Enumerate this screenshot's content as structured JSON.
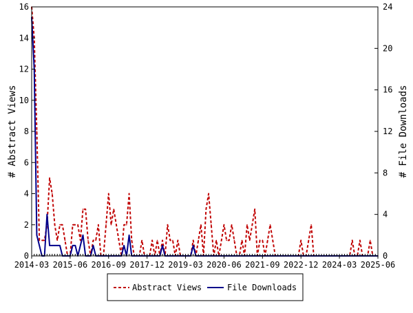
{
  "chart_data": {
    "type": "line",
    "title": "",
    "xlabel": "",
    "ylabel": "# Abstract Views",
    "y2label": "# File Downloads",
    "ylim": [
      0,
      16
    ],
    "y2lim": [
      0,
      24
    ],
    "yticks": [
      0,
      2,
      4,
      6,
      8,
      10,
      12,
      14,
      16
    ],
    "y2ticks": [
      0,
      4,
      8,
      12,
      16,
      20,
      24
    ],
    "x_range": [
      "2014-03",
      "2025-06"
    ],
    "x_tick_labels": [
      "2014-03",
      "2015-06",
      "2016-09",
      "2017-12",
      "2019-03",
      "2020-06",
      "2021-09",
      "2022-12",
      "2024-03",
      "2025-06"
    ],
    "grid": false,
    "legend_position": "bottom-center",
    "series": [
      {
        "name": "Abstract Views",
        "axis": "left",
        "color": "#c00000",
        "style": "dashed",
        "points": [
          [
            "2014-03",
            16
          ],
          [
            "2014-04",
            14
          ],
          [
            "2014-05",
            8
          ],
          [
            "2014-06",
            1
          ],
          [
            "2014-07",
            1
          ],
          [
            "2014-08",
            1
          ],
          [
            "2014-09",
            2
          ],
          [
            "2014-10",
            5
          ],
          [
            "2014-11",
            4
          ],
          [
            "2014-12",
            2
          ],
          [
            "2015-01",
            1
          ],
          [
            "2015-02",
            2
          ],
          [
            "2015-03",
            2
          ],
          [
            "2015-04",
            1
          ],
          [
            "2015-05",
            0
          ],
          [
            "2015-06",
            0
          ],
          [
            "2015-07",
            2
          ],
          [
            "2015-08",
            2
          ],
          [
            "2015-09",
            2
          ],
          [
            "2015-10",
            1
          ],
          [
            "2015-11",
            3
          ],
          [
            "2015-12",
            3
          ],
          [
            "2016-01",
            1
          ],
          [
            "2016-02",
            0
          ],
          [
            "2016-03",
            1
          ],
          [
            "2016-04",
            1
          ],
          [
            "2016-05",
            2
          ],
          [
            "2016-06",
            0
          ],
          [
            "2016-07",
            0
          ],
          [
            "2016-08",
            2
          ],
          [
            "2016-09",
            4
          ],
          [
            "2016-10",
            2
          ],
          [
            "2016-11",
            3
          ],
          [
            "2016-12",
            2
          ],
          [
            "2017-01",
            1
          ],
          [
            "2017-02",
            0
          ],
          [
            "2017-03",
            2
          ],
          [
            "2017-04",
            2
          ],
          [
            "2017-05",
            4
          ],
          [
            "2017-06",
            1
          ],
          [
            "2017-07",
            0
          ],
          [
            "2017-08",
            0
          ],
          [
            "2017-09",
            0
          ],
          [
            "2017-10",
            1
          ],
          [
            "2017-11",
            0
          ],
          [
            "2017-12",
            0
          ],
          [
            "2018-01",
            0
          ],
          [
            "2018-02",
            1
          ],
          [
            "2018-03",
            0
          ],
          [
            "2018-04",
            1
          ],
          [
            "2018-05",
            0
          ],
          [
            "2018-06",
            1
          ],
          [
            "2018-07",
            0
          ],
          [
            "2018-08",
            2
          ],
          [
            "2018-09",
            1
          ],
          [
            "2018-10",
            1
          ],
          [
            "2018-11",
            0
          ],
          [
            "2018-12",
            1
          ],
          [
            "2019-01",
            0
          ],
          [
            "2019-02",
            0
          ],
          [
            "2019-03",
            0
          ],
          [
            "2019-04",
            0
          ],
          [
            "2019-05",
            0
          ],
          [
            "2019-06",
            1
          ],
          [
            "2019-07",
            0
          ],
          [
            "2019-08",
            1
          ],
          [
            "2019-09",
            2
          ],
          [
            "2019-10",
            0
          ],
          [
            "2019-11",
            3
          ],
          [
            "2019-12",
            4
          ],
          [
            "2020-01",
            2
          ],
          [
            "2020-02",
            0
          ],
          [
            "2020-03",
            1
          ],
          [
            "2020-04",
            0
          ],
          [
            "2020-05",
            1
          ],
          [
            "2020-06",
            2
          ],
          [
            "2020-07",
            1
          ],
          [
            "2020-08",
            1
          ],
          [
            "2020-09",
            2
          ],
          [
            "2020-10",
            1
          ],
          [
            "2020-11",
            0
          ],
          [
            "2020-12",
            0
          ],
          [
            "2021-01",
            1
          ],
          [
            "2021-02",
            0
          ],
          [
            "2021-03",
            2
          ],
          [
            "2021-04",
            1
          ],
          [
            "2021-05",
            2
          ],
          [
            "2021-06",
            3
          ],
          [
            "2021-07",
            0
          ],
          [
            "2021-08",
            1
          ],
          [
            "2021-09",
            1
          ],
          [
            "2021-10",
            0
          ],
          [
            "2021-11",
            1
          ],
          [
            "2021-12",
            2
          ],
          [
            "2022-01",
            1
          ],
          [
            "2022-02",
            0
          ],
          [
            "2022-03",
            0
          ],
          [
            "2022-04",
            0
          ],
          [
            "2022-05",
            0
          ],
          [
            "2022-06",
            0
          ],
          [
            "2022-07",
            0
          ],
          [
            "2022-08",
            0
          ],
          [
            "2022-09",
            0
          ],
          [
            "2022-10",
            0
          ],
          [
            "2022-11",
            0
          ],
          [
            "2022-12",
            1
          ],
          [
            "2023-01",
            0
          ],
          [
            "2023-02",
            0
          ],
          [
            "2023-03",
            1
          ],
          [
            "2023-04",
            2
          ],
          [
            "2023-05",
            0
          ],
          [
            "2023-06",
            0
          ],
          [
            "2023-07",
            0
          ],
          [
            "2023-08",
            0
          ],
          [
            "2023-09",
            0
          ],
          [
            "2023-10",
            0
          ],
          [
            "2023-11",
            0
          ],
          [
            "2023-12",
            0
          ],
          [
            "2024-01",
            0
          ],
          [
            "2024-02",
            0
          ],
          [
            "2024-03",
            0
          ],
          [
            "2024-04",
            0
          ],
          [
            "2024-05",
            0
          ],
          [
            "2024-06",
            0
          ],
          [
            "2024-07",
            0
          ],
          [
            "2024-08",
            1
          ],
          [
            "2024-09",
            0
          ],
          [
            "2024-10",
            0
          ],
          [
            "2024-11",
            1
          ],
          [
            "2024-12",
            0
          ],
          [
            "2025-01",
            0
          ],
          [
            "2025-02",
            0
          ],
          [
            "2025-03",
            1
          ],
          [
            "2025-04",
            0
          ],
          [
            "2025-05",
            0
          ],
          [
            "2025-06",
            0
          ]
        ]
      },
      {
        "name": "File Downloads",
        "axis": "right",
        "color": "#00008b",
        "style": "solid",
        "points": [
          [
            "2014-03",
            23
          ],
          [
            "2014-04",
            18
          ],
          [
            "2014-05",
            2
          ],
          [
            "2014-06",
            1
          ],
          [
            "2014-07",
            0
          ],
          [
            "2014-08",
            0
          ],
          [
            "2014-09",
            4
          ],
          [
            "2014-10",
            1
          ],
          [
            "2014-11",
            1
          ],
          [
            "2014-12",
            1
          ],
          [
            "2015-01",
            1
          ],
          [
            "2015-02",
            1
          ],
          [
            "2015-03",
            0
          ],
          [
            "2015-04",
            0
          ],
          [
            "2015-05",
            0
          ],
          [
            "2015-06",
            0
          ],
          [
            "2015-07",
            1
          ],
          [
            "2015-08",
            1
          ],
          [
            "2015-09",
            0
          ],
          [
            "2015-10",
            1
          ],
          [
            "2015-11",
            2
          ],
          [
            "2015-12",
            0
          ],
          [
            "2016-01",
            0
          ],
          [
            "2016-02",
            0
          ],
          [
            "2016-03",
            1
          ],
          [
            "2016-04",
            0
          ],
          [
            "2016-05",
            0
          ],
          [
            "2016-06",
            0
          ],
          [
            "2016-07",
            0
          ],
          [
            "2016-08",
            0
          ],
          [
            "2016-09",
            0
          ],
          [
            "2016-10",
            0
          ],
          [
            "2016-11",
            0
          ],
          [
            "2016-12",
            0
          ],
          [
            "2017-01",
            0
          ],
          [
            "2017-02",
            0
          ],
          [
            "2017-03",
            1
          ],
          [
            "2017-04",
            0
          ],
          [
            "2017-05",
            2
          ],
          [
            "2017-06",
            0
          ],
          [
            "2017-07",
            0
          ],
          [
            "2017-08",
            0
          ],
          [
            "2017-09",
            0
          ],
          [
            "2017-10",
            0
          ],
          [
            "2017-11",
            0
          ],
          [
            "2017-12",
            0
          ],
          [
            "2018-01",
            0
          ],
          [
            "2018-02",
            0
          ],
          [
            "2018-03",
            0
          ],
          [
            "2018-04",
            0
          ],
          [
            "2018-05",
            0
          ],
          [
            "2018-06",
            1
          ],
          [
            "2018-07",
            0
          ],
          [
            "2018-08",
            0
          ],
          [
            "2018-09",
            0
          ],
          [
            "2018-10",
            0
          ],
          [
            "2018-11",
            0
          ],
          [
            "2018-12",
            0
          ],
          [
            "2019-01",
            0
          ],
          [
            "2019-02",
            0
          ],
          [
            "2019-03",
            0
          ],
          [
            "2019-04",
            0
          ],
          [
            "2019-05",
            0
          ],
          [
            "2019-06",
            1
          ],
          [
            "2019-07",
            0
          ],
          [
            "2019-08",
            0
          ],
          [
            "2019-09",
            0
          ],
          [
            "2019-10",
            0
          ],
          [
            "2019-11",
            0
          ],
          [
            "2019-12",
            0
          ],
          [
            "2020-01",
            0
          ],
          [
            "2020-02",
            0
          ],
          [
            "2020-03",
            0
          ],
          [
            "2020-04",
            0
          ],
          [
            "2020-05",
            0
          ],
          [
            "2020-06",
            0
          ],
          [
            "2020-07",
            0
          ],
          [
            "2020-08",
            0
          ],
          [
            "2020-09",
            0
          ],
          [
            "2020-10",
            0
          ],
          [
            "2020-11",
            0
          ],
          [
            "2020-12",
            0
          ],
          [
            "2021-01",
            0
          ],
          [
            "2021-02",
            0
          ],
          [
            "2021-03",
            0
          ],
          [
            "2021-04",
            0
          ],
          [
            "2021-05",
            0
          ],
          [
            "2021-06",
            0
          ],
          [
            "2021-07",
            0
          ],
          [
            "2021-08",
            0
          ],
          [
            "2021-09",
            0
          ],
          [
            "2021-10",
            0
          ],
          [
            "2021-11",
            0
          ],
          [
            "2021-12",
            0
          ],
          [
            "2022-01",
            0
          ],
          [
            "2022-02",
            0
          ],
          [
            "2022-03",
            0
          ],
          [
            "2022-04",
            0
          ],
          [
            "2022-05",
            0
          ],
          [
            "2022-06",
            0
          ],
          [
            "2022-07",
            0
          ],
          [
            "2022-08",
            0
          ],
          [
            "2022-09",
            0
          ],
          [
            "2022-10",
            0
          ],
          [
            "2022-11",
            0
          ],
          [
            "2022-12",
            0
          ],
          [
            "2023-01",
            0
          ],
          [
            "2023-02",
            0
          ],
          [
            "2023-03",
            0
          ],
          [
            "2023-04",
            0
          ],
          [
            "2023-05",
            0
          ],
          [
            "2023-06",
            0
          ],
          [
            "2023-07",
            0
          ],
          [
            "2023-08",
            0
          ],
          [
            "2023-09",
            0
          ],
          [
            "2023-10",
            0
          ],
          [
            "2023-11",
            0
          ],
          [
            "2023-12",
            0
          ],
          [
            "2024-01",
            0
          ],
          [
            "2024-02",
            0
          ],
          [
            "2024-03",
            0
          ],
          [
            "2024-04",
            0
          ],
          [
            "2024-05",
            0
          ],
          [
            "2024-06",
            0
          ],
          [
            "2024-07",
            0
          ],
          [
            "2024-08",
            0
          ],
          [
            "2024-09",
            0
          ],
          [
            "2024-10",
            0
          ],
          [
            "2024-11",
            0
          ],
          [
            "2024-12",
            0
          ],
          [
            "2025-01",
            0
          ],
          [
            "2025-02",
            0
          ],
          [
            "2025-03",
            0
          ],
          [
            "2025-04",
            0
          ],
          [
            "2025-05",
            0
          ],
          [
            "2025-06",
            0
          ]
        ]
      }
    ]
  }
}
